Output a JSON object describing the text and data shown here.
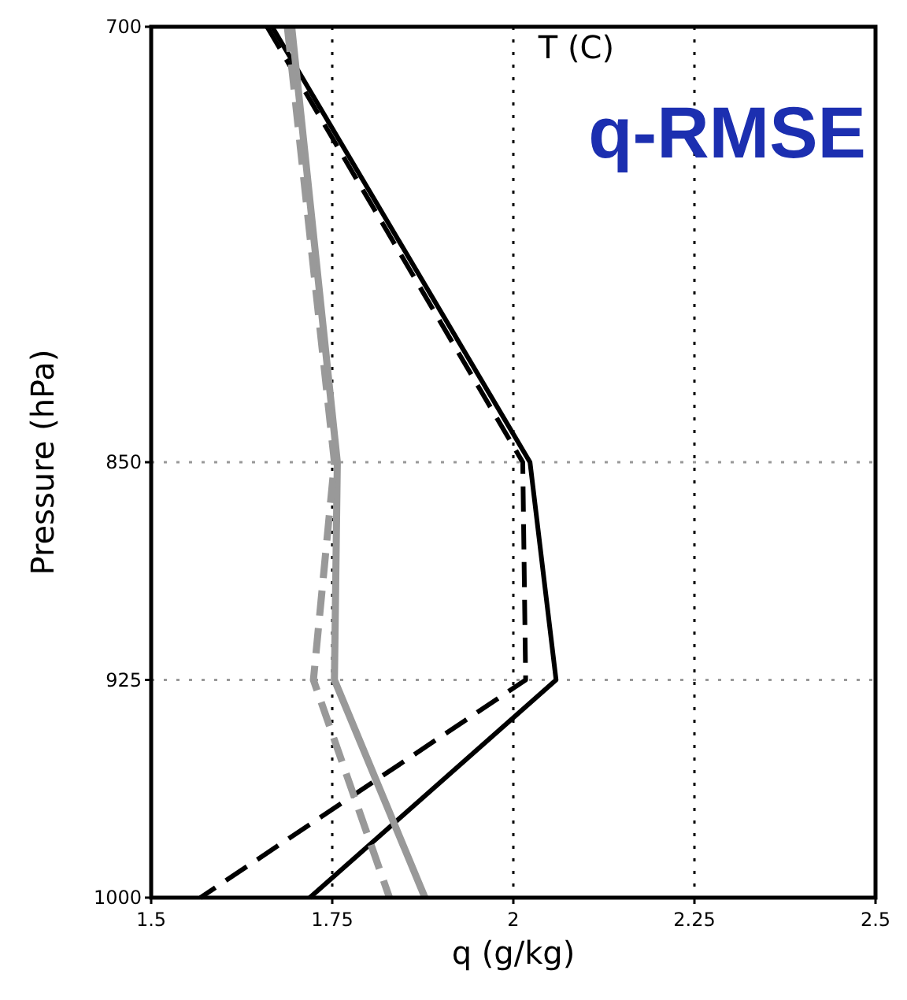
{
  "chart_data": {
    "type": "line",
    "title": "q-RMSE",
    "annotations": [
      "T (C)"
    ],
    "xlabel": "q (g/kg)",
    "ylabel": "Pressure (hPa)",
    "xlim": [
      1.5,
      2.5
    ],
    "xticks": [
      1.5,
      1.75,
      2,
      2.25,
      2.5
    ],
    "ylim": [
      1000,
      700
    ],
    "yticks": [
      700,
      850,
      925,
      1000
    ],
    "grid": true,
    "series": [
      {
        "color": "#000000",
        "line_style": "solid",
        "x": [
          1.667,
          2.023,
          2.059,
          1.719
        ],
        "values": [
          700,
          850,
          925,
          1000
        ]
      },
      {
        "color": "#000000",
        "line_style": "dashed",
        "x": [
          1.66,
          2.013,
          2.017,
          1.568
        ],
        "values": [
          700,
          850,
          925,
          1000
        ]
      },
      {
        "color": "#999999",
        "line_style": "solid",
        "x": [
          1.694,
          1.757,
          1.753,
          1.878
        ],
        "values": [
          700,
          850,
          925,
          1000
        ]
      },
      {
        "color": "#999999",
        "line_style": "dashed",
        "x": [
          1.688,
          1.753,
          1.724,
          1.829
        ],
        "values": [
          700,
          850,
          925,
          1000
        ]
      }
    ]
  }
}
